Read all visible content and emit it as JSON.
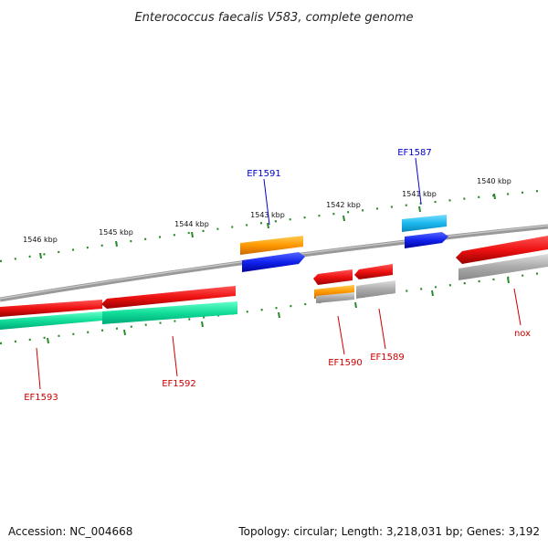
{
  "title": "Enterococcus faecalis V583, complete genome",
  "footer": {
    "accession": "Accession: NC_004668",
    "topology": "Topology: circular; Length: 3,218,031 bp; Genes: 3,192"
  },
  "ticks": [
    "1546 kbp",
    "1545 kbp",
    "1544 kbp",
    "1543 kbp",
    "1542 kbp",
    "1541 kbp",
    "1540 kbp"
  ],
  "genes": [
    {
      "id": "EF1593",
      "name": "EF1593",
      "strand": "-"
    },
    {
      "id": "EF1592",
      "name": "EF1592",
      "strand": "-"
    },
    {
      "id": "EF1591",
      "name": "EF1591",
      "strand": "+"
    },
    {
      "id": "EF1590",
      "name": "EF1590",
      "strand": "-"
    },
    {
      "id": "EF1589",
      "name": "EF1589",
      "strand": "-"
    },
    {
      "id": "EF1587",
      "name": "EF1587",
      "strand": "+"
    },
    {
      "id": "nox",
      "name": "nox",
      "strand": "-"
    }
  ],
  "colors": {
    "forward_label": "#0000cc",
    "reverse_label": "#cc0000",
    "cds_red": "#ee1111",
    "cds_blue": "#1122ee",
    "cds_orange": "#ff9900",
    "cds_cyan": "#1ab8ee",
    "feature_green": "#11dd99",
    "feature_grey": "#aaaaaa",
    "backbone": "#888888",
    "tick": "#2a8a2a"
  }
}
